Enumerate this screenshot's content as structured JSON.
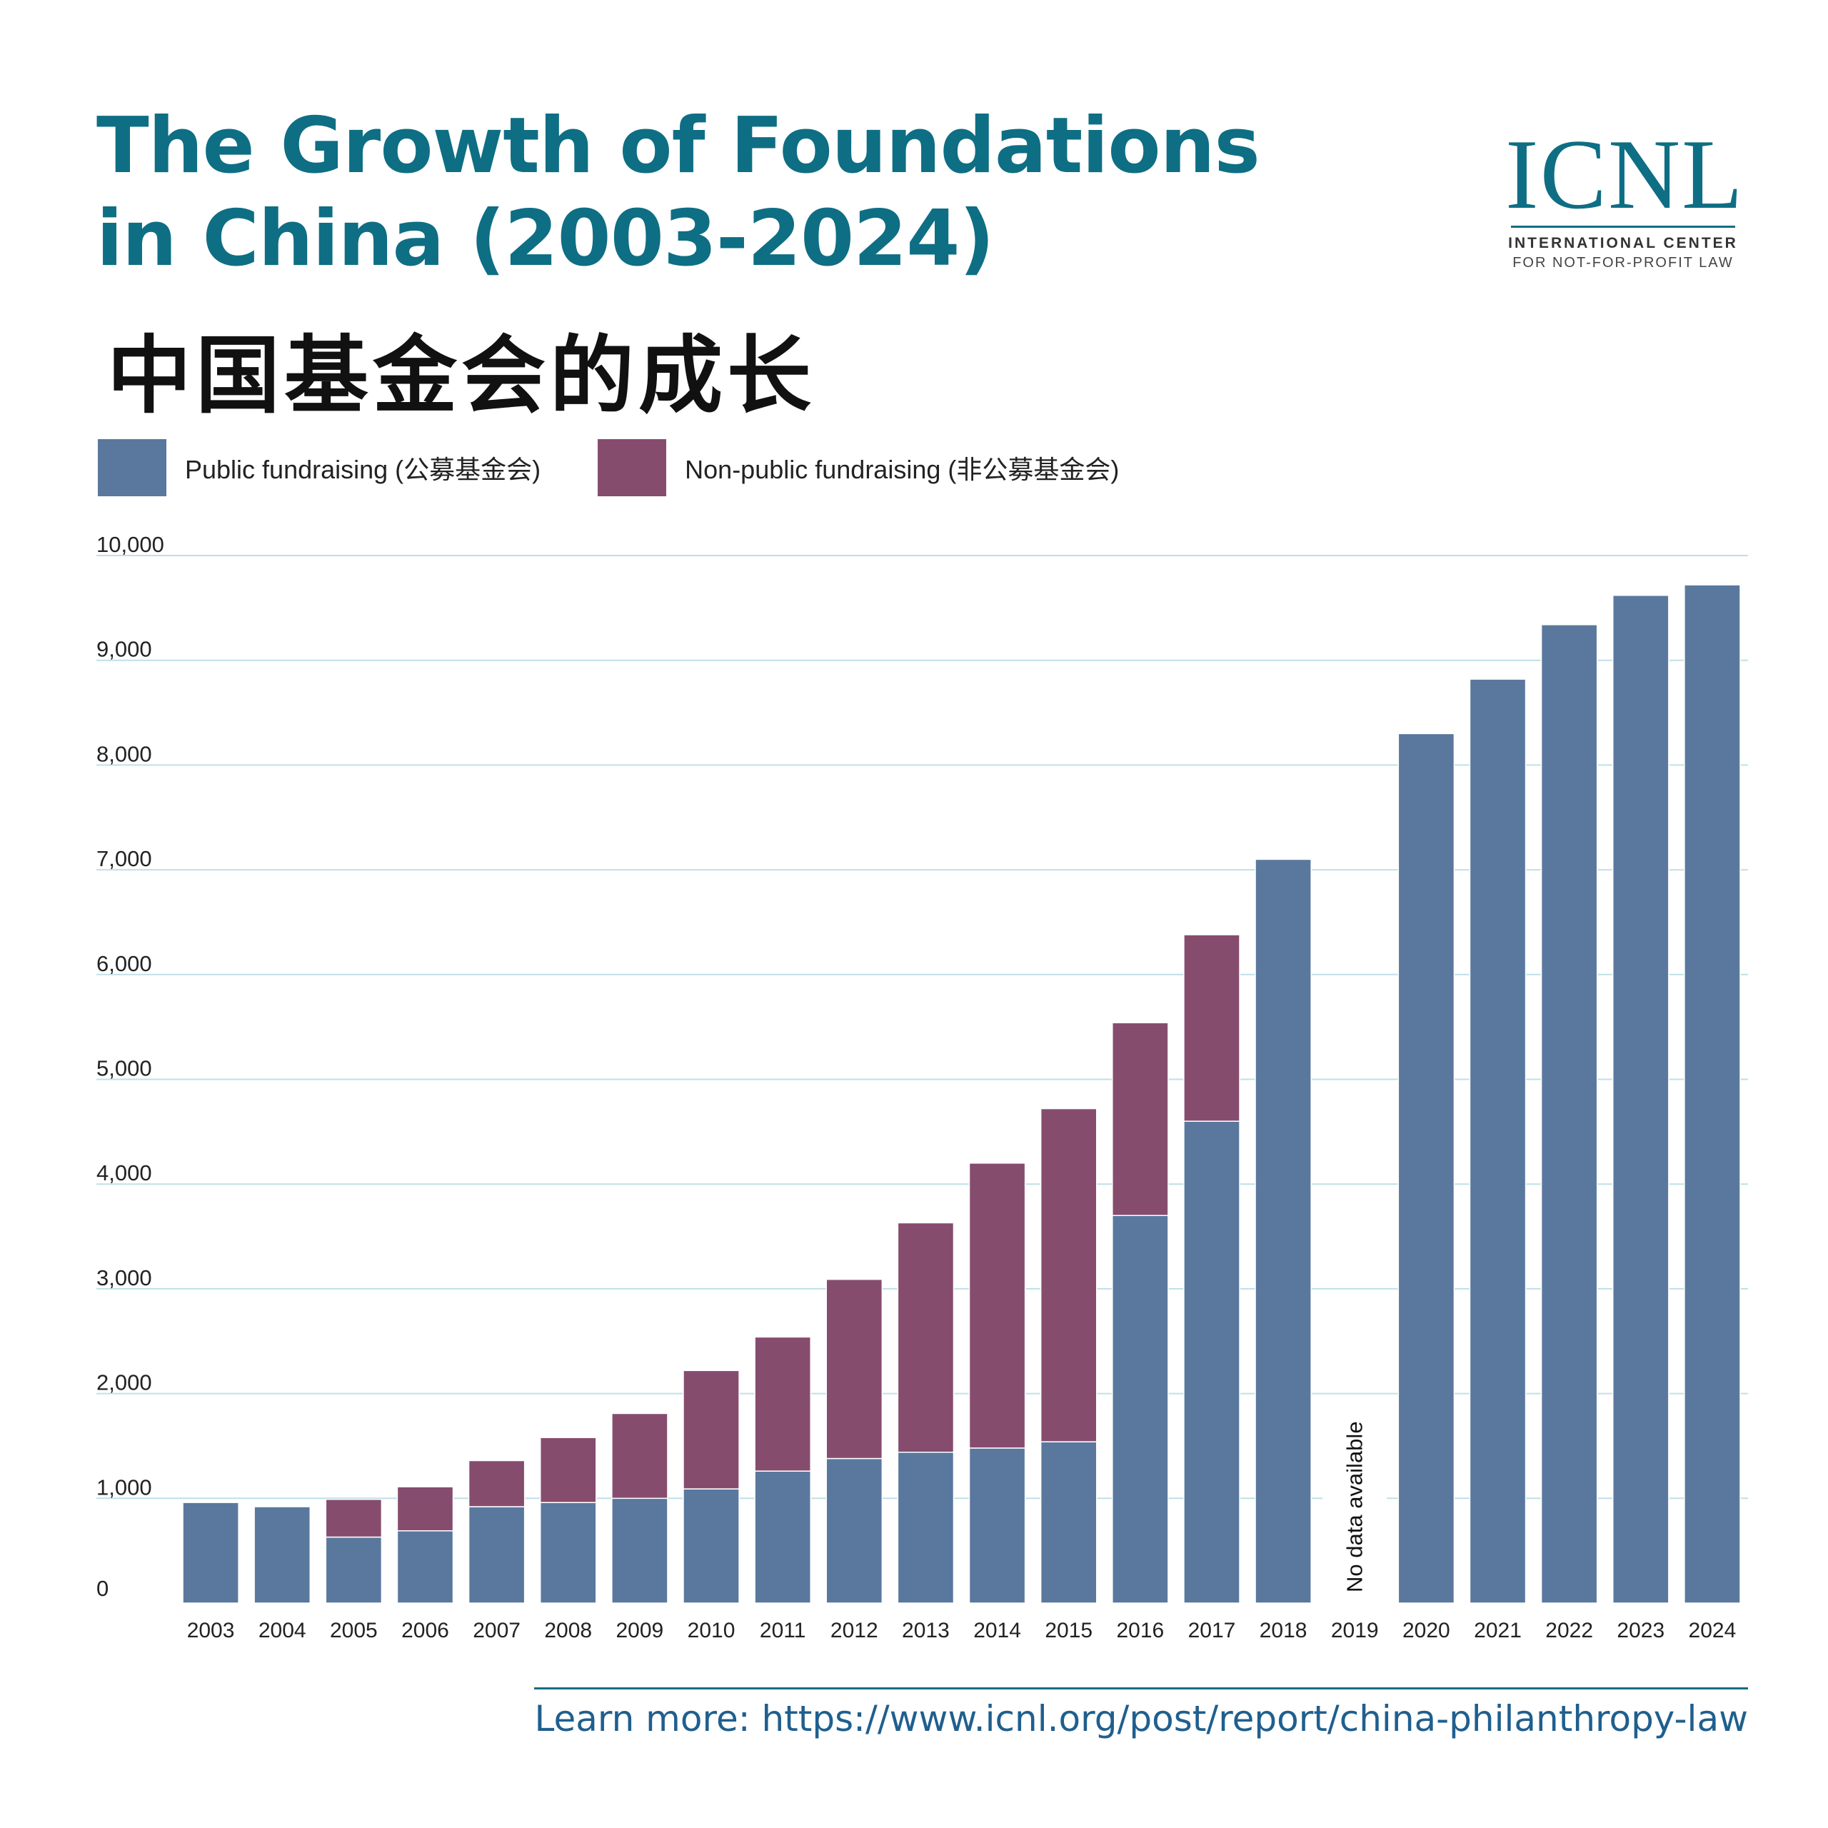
{
  "header": {
    "title_line1": "The Growth of Foundations",
    "title_line2": "in China (2003-2024)",
    "subtitle_cn": "中国基金会的成长"
  },
  "logo": {
    "mark": "ICNL",
    "line1": "INTERNATIONAL CENTER",
    "line2": "FOR NOT-FOR-PROFIT LAW"
  },
  "footer": {
    "text": "Learn more: https://www.icnl.org/post/report/china-philanthropy-law"
  },
  "colors": {
    "public": "#5a789d",
    "non_public": "#864c6e",
    "title": "#0e6e84",
    "grid": "#bfe0e8"
  },
  "chart_data": {
    "type": "bar",
    "stacked": true,
    "categories": [
      "2003",
      "2004",
      "2005",
      "2006",
      "2007",
      "2008",
      "2009",
      "2010",
      "2011",
      "2012",
      "2013",
      "2014",
      "2015",
      "2016",
      "2017",
      "2018",
      "2019",
      "2020",
      "2021",
      "2022",
      "2023",
      "2024"
    ],
    "series": [
      {
        "name": "Public fundraising (公募基金会)",
        "color": "#5a789d",
        "values": [
          960,
          920,
          630,
          690,
          920,
          960,
          1000,
          1090,
          1260,
          1380,
          1440,
          1480,
          1540,
          3700,
          4600,
          7100,
          null,
          8300,
          8820,
          9340,
          9620,
          9720
        ]
      },
      {
        "name": "Non-public fundraising (非公募基金会)",
        "color": "#864c6e",
        "values": [
          0,
          0,
          360,
          420,
          440,
          620,
          810,
          1130,
          1280,
          1710,
          2190,
          2720,
          3180,
          1840,
          1780,
          0,
          null,
          0,
          0,
          0,
          0,
          0
        ]
      }
    ],
    "yticks": [
      "0",
      "1,000",
      "2,000",
      "3,000",
      "4,000",
      "5,000",
      "6,000",
      "7,000",
      "8,000",
      "9,000",
      "10,000"
    ],
    "ylim": [
      0,
      10000
    ],
    "grid": true,
    "legend_position": "top-left",
    "annotations": [
      {
        "category": "2019",
        "text": "No data available"
      }
    ]
  }
}
